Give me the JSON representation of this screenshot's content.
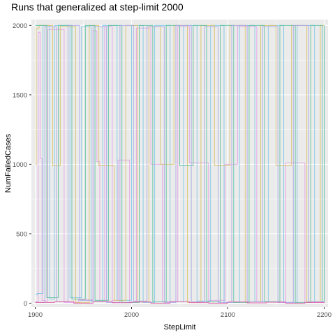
{
  "chart_data": {
    "type": "line",
    "title": "Runs that generalized at step-limit 2000",
    "xlabel": "StepLimit",
    "ylabel": "NumFailedCases",
    "xlim": [
      1896,
      2204
    ],
    "ylim": [
      -28,
      2042
    ],
    "xticks": [
      1900,
      2000,
      2100,
      2200
    ],
    "yticks": [
      0,
      500,
      1000,
      1500,
      2000
    ],
    "xtick_labels": [
      "1900",
      "2000",
      "2100",
      "2200"
    ],
    "ytick_labels": [
      "0",
      "500",
      "1000",
      "1500",
      "2000"
    ],
    "grid": true,
    "legend": "none",
    "series": [
      {
        "color": "#E6A0E6",
        "x": [
          1900,
          1903,
          1905,
          1907,
          1910,
          1913,
          1930,
          1945,
          1960,
          1964,
          1967,
          1972,
          1980,
          1986,
          1998,
          2005,
          2020,
          2032,
          2048,
          2060,
          2080,
          2097,
          2110,
          2130,
          2160,
          2180,
          2200
        ],
        "y": [
          10,
          1950,
          1040,
          20,
          15,
          1970,
          5,
          25,
          1960,
          1020,
          10,
          1990,
          20,
          1030,
          5,
          1980,
          1000,
          10,
          1990,
          1010,
          20,
          1000,
          1990,
          10,
          1010,
          5,
          1010
        ]
      },
      {
        "color": "#7FC8E6",
        "x": [
          1900,
          1902,
          1908,
          1915,
          1920,
          1936,
          1948,
          1958,
          1970,
          1985,
          2000,
          2012,
          2024,
          2040,
          2054,
          2068,
          2082,
          2096,
          2112,
          2128,
          2142,
          2158,
          2172,
          2190,
          2200
        ],
        "y": [
          60,
          70,
          2000,
          30,
          2000,
          40,
          1990,
          10,
          2000,
          20,
          2000,
          5,
          2000,
          10,
          2000,
          15,
          2000,
          5,
          2000,
          10,
          2000,
          5,
          2000,
          10,
          2000
        ]
      },
      {
        "color": "#D9C26A",
        "x": [
          1900,
          1901,
          1904,
          1918,
          1926,
          1942,
          1956,
          1966,
          1982,
          1994,
          2006,
          2018,
          2030,
          2044,
          2058,
          2072,
          2086,
          2102,
          2118,
          2134,
          2150,
          2166,
          2182,
          2196,
          2200
        ],
        "y": [
          1000,
          1980,
          2000,
          990,
          1990,
          5,
          2000,
          990,
          20,
          2000,
          10,
          1990,
          1000,
          2000,
          5,
          2000,
          990,
          2000,
          10,
          2000,
          990,
          2000,
          10,
          2000,
          2000
        ]
      },
      {
        "color": "#5CC0A0",
        "x": [
          1900,
          1912,
          1924,
          1938,
          1952,
          1962,
          1976,
          1990,
          2008,
          2022,
          2036,
          2050,
          2064,
          2078,
          2092,
          2106,
          2122,
          2138,
          2154,
          2170,
          2186,
          2198,
          2200
        ],
        "y": [
          2000,
          40,
          2000,
          30,
          2000,
          20,
          2000,
          5,
          2000,
          10,
          2000,
          990,
          2000,
          10,
          2000,
          5,
          2000,
          10,
          2000,
          5,
          2000,
          10,
          2000
        ]
      },
      {
        "color": "#A8A8E8",
        "x": [
          1900,
          1910,
          1922,
          1934,
          1946,
          1960,
          1974,
          1988,
          2002,
          2016,
          2034,
          2046,
          2062,
          2076,
          2090,
          2104,
          2120,
          2136,
          2152,
          2168,
          2184,
          2200
        ],
        "y": [
          5,
          1990,
          10,
          2000,
          20,
          1990,
          5,
          2000,
          15,
          1990,
          5,
          2000,
          10,
          1990,
          5,
          2000,
          10,
          1990,
          5,
          2000,
          10,
          5
        ]
      },
      {
        "color": "#E05AA8",
        "x": [
          1900,
          1920,
          1940,
          1960,
          1980,
          2000,
          2020,
          2040,
          2060,
          2080,
          2100,
          2120,
          2140,
          2160,
          2180,
          2200
        ],
        "y": [
          5,
          10,
          0,
          12,
          3,
          8,
          0,
          10,
          4,
          0,
          9,
          2,
          7,
          0,
          5,
          0
        ]
      }
    ]
  }
}
